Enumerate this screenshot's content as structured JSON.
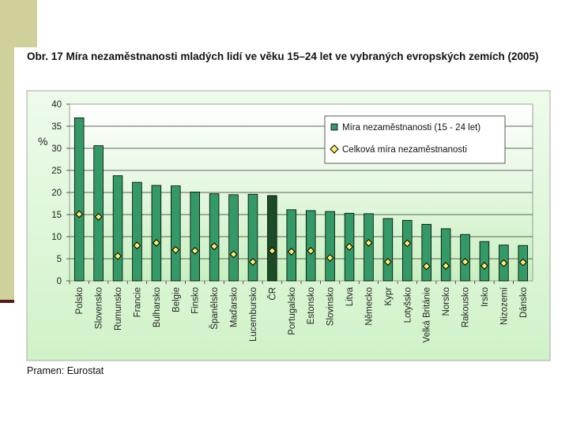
{
  "figure": {
    "title": "Obr. 17 Míra nezaměstnanosti mladých lidí ve věku 15–24 let ve vybraných evropských zemích (2005)",
    "source": "Pramen: Eurostat"
  },
  "chart_data": {
    "type": "bar",
    "ylabel": "%",
    "ylim": [
      0,
      40
    ],
    "yticks": [
      "0",
      "5",
      "10",
      "15",
      "20",
      "25",
      "30",
      "35",
      "40"
    ],
    "categories": [
      "Polsko",
      "Slovensko",
      "Rumunsko",
      "Francie",
      "Bulharsko",
      "Belgie",
      "Finsko",
      "Španělsko",
      "Maďarsko",
      "Lucembursko",
      "ČR",
      "Portugalsko",
      "Estonsko",
      "Slovinsko",
      "Litva",
      "Německo",
      "Kypr",
      "Lotyšsko",
      "Velká Británie",
      "Norsko",
      "Rakousko",
      "Irsko",
      "Nizozemí",
      "Dánsko"
    ],
    "highlight_category": "ČR",
    "series": [
      {
        "name": "Míra nezaměstnanosti (15 - 24 let)",
        "kind": "bar",
        "values": [
          36.9,
          30.6,
          23.8,
          22.3,
          21.6,
          21.5,
          20.1,
          19.7,
          19.5,
          19.6,
          19.3,
          16.1,
          15.9,
          15.7,
          15.3,
          15.2,
          14.1,
          13.7,
          12.8,
          11.8,
          10.5,
          8.9,
          8.1,
          8.0
        ],
        "color": "#339966",
        "highlight_color": "#1a4d26"
      },
      {
        "name": "Celková míra nezaměstnanosti",
        "kind": "marker",
        "values": [
          15.1,
          14.5,
          5.6,
          8.0,
          8.6,
          7.0,
          6.8,
          7.8,
          6.0,
          4.3,
          6.8,
          6.6,
          6.8,
          5.2,
          7.7,
          8.6,
          4.3,
          8.5,
          3.3,
          3.4,
          4.3,
          3.4,
          4.0,
          4.2
        ],
        "color": "#ffee66"
      }
    ],
    "legend_position": "top-right",
    "grid": true
  }
}
